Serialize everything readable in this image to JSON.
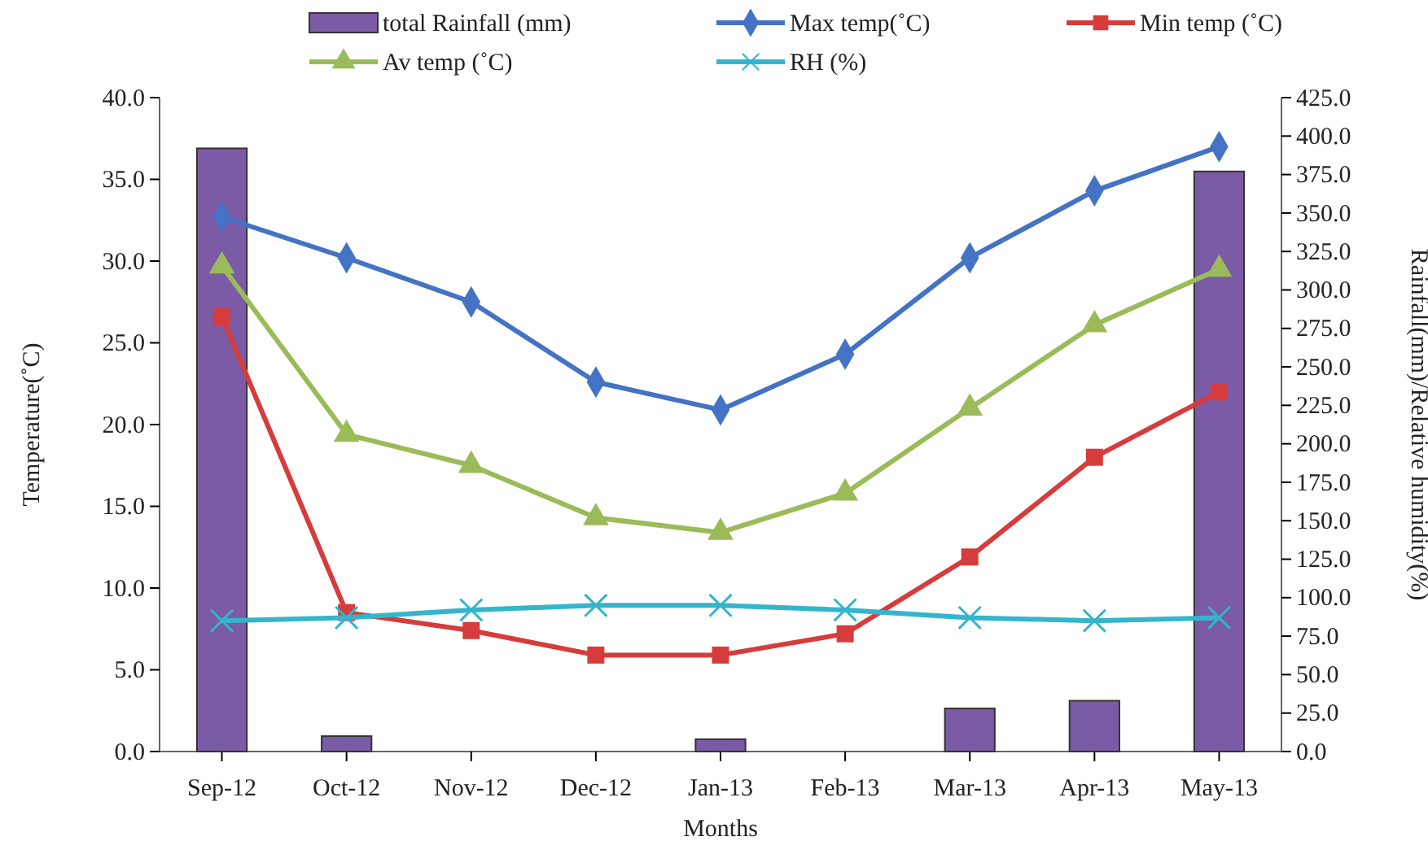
{
  "chart_data": {
    "type": "line",
    "xlabel": "Months",
    "ylabel": "Temperature(˚C)",
    "y2label": "Rainfall(mm)/Relative humidity(%)",
    "categories": [
      "Sep-12",
      "Oct-12",
      "Nov-12",
      "Dec-12",
      "Jan-13",
      "Feb-13",
      "Mar-13",
      "Apr-13",
      "May-13"
    ],
    "series": [
      {
        "name": "total Rainfall (mm)",
        "type": "bar",
        "axis": "y2",
        "color": "#7b5aa6",
        "values": [
          392,
          10,
          0,
          0,
          8,
          0,
          28,
          33,
          377
        ]
      },
      {
        "name": "Max temp(˚C)",
        "color": "#4472c4",
        "marker": "diamond",
        "values": [
          32.7,
          30.2,
          27.5,
          22.6,
          20.9,
          24.3,
          30.2,
          34.3,
          37.0
        ]
      },
      {
        "name": "Min temp (˚C)",
        "color": "#d63c3c",
        "marker": "square",
        "values": [
          26.6,
          8.5,
          7.4,
          5.9,
          5.9,
          7.2,
          11.9,
          18.0,
          22.0
        ]
      },
      {
        "name": "Av temp (˚C)",
        "color": "#9bbb59",
        "marker": "triangle",
        "values": [
          29.7,
          19.4,
          17.5,
          14.3,
          13.4,
          15.8,
          21.0,
          26.1,
          29.5
        ]
      },
      {
        "name": "RH (%)",
        "axis": "y2",
        "color": "#33b5cc",
        "marker": "cross",
        "values": [
          85,
          87,
          92,
          95,
          95,
          92,
          87,
          85,
          87
        ]
      }
    ],
    "ylim": [
      0,
      40
    ],
    "yticks": [
      {
        "value": 0,
        "label": "0.0"
      },
      {
        "value": 5,
        "label": "5.0"
      },
      {
        "value": 10,
        "label": "10.0"
      },
      {
        "value": 15,
        "label": "15.0"
      },
      {
        "value": 20,
        "label": "20.0"
      },
      {
        "value": 25,
        "label": "25.0"
      },
      {
        "value": 30,
        "label": "30.0"
      },
      {
        "value": 35,
        "label": "35.0"
      },
      {
        "value": 40,
        "label": "40.0"
      }
    ],
    "y2lim": [
      0,
      425
    ],
    "y2ticks": [
      {
        "value": 0,
        "label": "0.0"
      },
      {
        "value": 25,
        "label": "25.0"
      },
      {
        "value": 50,
        "label": "50.0"
      },
      {
        "value": 75,
        "label": "75.0"
      },
      {
        "value": 100,
        "label": "100.0"
      },
      {
        "value": 125,
        "label": "125.0"
      },
      {
        "value": 150,
        "label": "150.0"
      },
      {
        "value": 175,
        "label": "175.0"
      },
      {
        "value": 200,
        "label": "200.0"
      },
      {
        "value": 225,
        "label": "225.0"
      },
      {
        "value": 250,
        "label": "250.0"
      },
      {
        "value": 275,
        "label": "275.0"
      },
      {
        "value": 300,
        "label": "300.0"
      },
      {
        "value": 325,
        "label": "325.0"
      },
      {
        "value": 350,
        "label": "350.0"
      },
      {
        "value": 375,
        "label": "375.0"
      },
      {
        "value": 400,
        "label": "400.0"
      },
      {
        "value": 425,
        "label": "425.0"
      }
    ],
    "legend": "top",
    "grid": false
  }
}
